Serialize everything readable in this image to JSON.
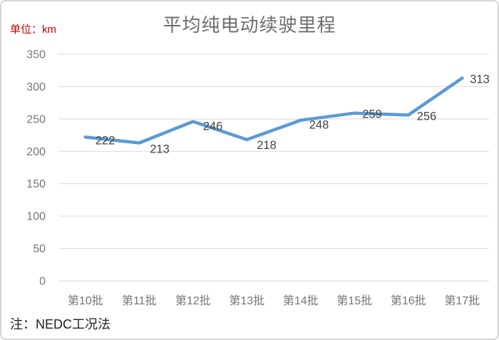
{
  "title": "平均纯电动续驶里程",
  "unit_label": "单位：km",
  "note": "注：NEDC工况法",
  "colors": {
    "line": "#5b9bd5",
    "grid": "#d9d9d9",
    "axis_text": "#767676",
    "data_label": "#444444",
    "title_text": "#6e6e6e",
    "unit_text": "#c00000",
    "note_text": "#1f1f1f"
  },
  "chart_data": {
    "type": "line",
    "title": "平均纯电动续驶里程",
    "ylabel": "单位：km",
    "xlabel": "",
    "categories": [
      "第10批",
      "第11批",
      "第12批",
      "第13批",
      "第14批",
      "第15批",
      "第16批",
      "第17批"
    ],
    "values": [
      222,
      213,
      246,
      218,
      248,
      259,
      256,
      313
    ],
    "y_ticks": [
      0,
      50,
      100,
      150,
      200,
      250,
      300,
      350
    ],
    "ylim": [
      0,
      350
    ],
    "grid": true,
    "legend": false,
    "annotation": "注：NEDC工况法"
  }
}
